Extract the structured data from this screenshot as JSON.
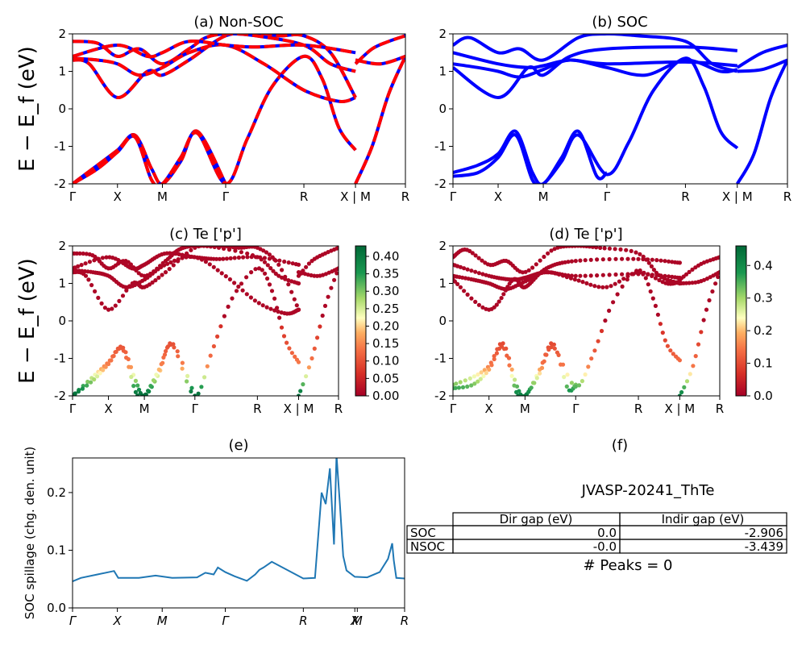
{
  "figure": {
    "id_label": "JVASP-20241_ThTe",
    "peaks_label": "# Peaks = 0"
  },
  "chart_data": [
    {
      "panel": "a",
      "type": "line",
      "title": "(a) Non-SOC",
      "ylabel": "E − E_f (eV)",
      "ylim": [
        -2,
        2
      ],
      "yticks": [
        -2,
        -1,
        0,
        1,
        2
      ],
      "kpath": [
        "Γ",
        "X",
        "M",
        "Γ",
        "R",
        "X | M",
        "R"
      ],
      "kpos": [
        0,
        0.54,
        1.08,
        1.84,
        2.78,
        3.4,
        4.0
      ],
      "series": [
        {
          "color": "#0000ff",
          "x": [
            0,
            0.3,
            0.54,
            0.75,
            0.95,
            1.08,
            1.3,
            1.5,
            1.84
          ],
          "y": [
            -2.0,
            -1.5,
            -1.1,
            -0.7,
            -1.6,
            -2.0,
            -1.4,
            -0.6,
            -2.0
          ]
        },
        {
          "color": "#0000ff",
          "x": [
            0,
            0.3,
            0.54,
            0.75,
            0.95,
            1.08,
            1.3,
            1.5,
            1.84,
            2.1,
            2.4,
            2.78,
            3.0,
            3.2,
            3.4
          ],
          "y": [
            -2.0,
            -1.6,
            -1.15,
            -0.75,
            -1.9,
            -2.0,
            -1.3,
            -0.65,
            -2.0,
            -0.8,
            0.6,
            1.4,
            0.8,
            -0.5,
            -1.1
          ]
        },
        {
          "color": "#0000ff",
          "x": [
            0,
            0.2,
            0.54,
            0.9,
            1.08,
            1.4,
            1.84,
            2.2,
            2.5,
            2.78,
            3.1,
            3.4
          ],
          "y": [
            1.3,
            1.2,
            0.3,
            1.0,
            0.9,
            1.3,
            1.95,
            2.0,
            1.95,
            1.95,
            1.5,
            0.3
          ]
        },
        {
          "color": "#0000ff",
          "x": [
            0,
            0.3,
            0.54,
            0.8,
            1.08,
            1.4,
            1.6,
            1.84,
            2.2,
            2.78,
            3.1,
            3.4
          ],
          "y": [
            1.8,
            1.75,
            1.4,
            1.6,
            1.2,
            1.6,
            1.9,
            2.0,
            1.95,
            1.7,
            1.2,
            1.0
          ]
        },
        {
          "color": "#0000ff",
          "x": [
            0,
            0.3,
            0.54,
            0.8,
            1.08,
            1.4,
            1.84,
            2.3,
            2.78,
            3.2,
            3.4
          ],
          "y": [
            1.35,
            1.3,
            1.2,
            0.9,
            1.1,
            1.5,
            1.7,
            1.2,
            0.5,
            0.2,
            0.3
          ]
        },
        {
          "color": "#0000ff",
          "x": [
            0,
            0.54,
            0.9,
            1.08,
            1.4,
            1.84,
            2.2,
            2.78,
            3.4
          ],
          "y": [
            1.4,
            1.7,
            1.4,
            1.5,
            1.8,
            1.7,
            1.65,
            1.7,
            1.5
          ]
        },
        {
          "color": "#0000ff",
          "x": [
            3.4,
            3.6,
            3.8,
            4.0
          ],
          "y": [
            -2.0,
            -1.0,
            0.4,
            1.4
          ]
        },
        {
          "color": "#0000ff",
          "x": [
            3.4,
            3.6,
            3.8,
            4.0
          ],
          "y": [
            1.2,
            1.6,
            1.8,
            1.95
          ]
        },
        {
          "color": "#0000ff",
          "x": [
            3.4,
            3.7,
            4.0
          ],
          "y": [
            1.3,
            1.2,
            1.4
          ]
        }
      ]
    },
    {
      "panel": "b",
      "type": "line",
      "title": "(b) SOC",
      "ylim": [
        -2,
        2
      ],
      "yticks": [
        -2,
        -1,
        0,
        1,
        2
      ],
      "kpath": [
        "Γ",
        "X",
        "M",
        "Γ",
        "R",
        "X | M",
        "R"
      ],
      "kpos": [
        0,
        0.54,
        1.08,
        1.84,
        2.78,
        3.4,
        4.0
      ],
      "series": [
        {
          "color": "#0000ff",
          "x": [
            0,
            0.3,
            0.54,
            0.75,
            0.95,
            1.08,
            1.3,
            1.5,
            1.72,
            1.84
          ],
          "y": [
            -1.7,
            -1.5,
            -1.2,
            -0.6,
            -1.7,
            -2.0,
            -1.3,
            -0.6,
            -1.8,
            -1.7
          ]
        },
        {
          "color": "#0000ff",
          "x": [
            0,
            0.3,
            0.54,
            0.75,
            0.95,
            1.08,
            1.3,
            1.5,
            1.84,
            2.1,
            2.4,
            2.78,
            3.0,
            3.2,
            3.4
          ],
          "y": [
            -1.8,
            -1.7,
            -1.3,
            -0.7,
            -1.9,
            -2.0,
            -1.4,
            -0.7,
            -1.75,
            -0.9,
            0.5,
            1.35,
            0.6,
            -0.6,
            -1.05
          ]
        },
        {
          "color": "#0000ff",
          "x": [
            0,
            0.54,
            0.9,
            1.08,
            1.4,
            1.84,
            2.78,
            3.4
          ],
          "y": [
            1.1,
            0.3,
            1.1,
            0.9,
            1.4,
            1.6,
            1.65,
            1.55
          ]
        },
        {
          "color": "#0000ff",
          "x": [
            0,
            0.2,
            0.54,
            0.8,
            1.08,
            1.5,
            1.84,
            2.2,
            2.78,
            3.1,
            3.4
          ],
          "y": [
            1.7,
            1.9,
            1.5,
            1.6,
            1.3,
            1.9,
            2.0,
            1.95,
            1.8,
            1.2,
            1.0
          ]
        },
        {
          "color": "#0000ff",
          "x": [
            0,
            0.3,
            0.54,
            0.8,
            1.08,
            1.4,
            1.84,
            2.3,
            2.78,
            3.2,
            3.4
          ],
          "y": [
            1.2,
            1.1,
            1.0,
            0.85,
            1.05,
            1.3,
            1.1,
            0.9,
            1.3,
            1.0,
            1.05
          ]
        },
        {
          "color": "#0000ff",
          "x": [
            0,
            0.54,
            0.9,
            1.08,
            1.4,
            1.84,
            2.78,
            3.4
          ],
          "y": [
            1.5,
            1.2,
            1.1,
            1.15,
            1.3,
            1.2,
            1.25,
            1.15
          ]
        },
        {
          "color": "#0000ff",
          "x": [
            3.4,
            3.6,
            3.8,
            4.0
          ],
          "y": [
            -2.0,
            -1.2,
            0.3,
            1.3
          ]
        },
        {
          "color": "#0000ff",
          "x": [
            3.4,
            3.7,
            4.0
          ],
          "y": [
            1.1,
            1.5,
            1.7
          ]
        },
        {
          "color": "#0000ff",
          "x": [
            3.4,
            3.7,
            4.0
          ],
          "y": [
            1.0,
            1.05,
            1.3
          ]
        }
      ]
    },
    {
      "panel": "c",
      "type": "scatter",
      "title": "(c)  Te ['p']",
      "ylabel": "E − E_f (eV)",
      "ylim": [
        -2,
        2
      ],
      "yticks": [
        -2,
        -1,
        0,
        1,
        2
      ],
      "kpath": [
        "Γ",
        "X",
        "M",
        "Γ",
        "R",
        "X | M",
        "R"
      ],
      "kpos": [
        0,
        0.54,
        1.08,
        1.84,
        2.78,
        3.4,
        4.0
      ],
      "colorbar": {
        "min": 0.0,
        "max": 0.43,
        "ticks": [
          "0.00",
          "0.05",
          "0.10",
          "0.15",
          "0.20",
          "0.25",
          "0.30",
          "0.35",
          "0.40"
        ]
      }
    },
    {
      "panel": "d",
      "type": "scatter",
      "title": "(d) Te ['p']",
      "ylim": [
        -2,
        2
      ],
      "yticks": [
        -2,
        -1,
        0,
        1,
        2
      ],
      "kpath": [
        "Γ",
        "X",
        "M",
        "Γ",
        "R",
        "X | M",
        "R"
      ],
      "kpos": [
        0,
        0.54,
        1.08,
        1.84,
        2.78,
        3.4,
        4.0
      ],
      "colorbar": {
        "min": 0.0,
        "max": 0.46,
        "ticks": [
          "0.0",
          "0.1",
          "0.2",
          "0.3",
          "0.4"
        ]
      }
    },
    {
      "panel": "e",
      "type": "line",
      "title": "(e)",
      "ylabel": "SOC spillage (chg. den. unit)",
      "ylim": [
        0,
        0.26
      ],
      "yticks": [
        0.0,
        0.1,
        0.2
      ],
      "kpath": [
        "Γ",
        "X",
        "M",
        "Γ",
        "R",
        "X",
        "M",
        "R"
      ],
      "kpos": [
        0,
        0.54,
        1.08,
        1.84,
        2.78,
        3.4,
        3.43,
        4.0
      ],
      "series": [
        {
          "color": "#1f77b4",
          "x": [
            0,
            0.1,
            0.3,
            0.5,
            0.55,
            0.7,
            0.8,
            1.0,
            1.2,
            1.5,
            1.6,
            1.7,
            1.75,
            1.84,
            1.95,
            2.1,
            2.2,
            2.25,
            2.3,
            2.4,
            2.78,
            2.92,
            3.0,
            3.05,
            3.1,
            3.15,
            3.18,
            3.22,
            3.26,
            3.3,
            3.4,
            3.55,
            3.7,
            3.8,
            3.85,
            3.87,
            3.9,
            4.0
          ],
          "y": [
            0.046,
            0.052,
            0.058,
            0.064,
            0.052,
            0.052,
            0.052,
            0.056,
            0.052,
            0.053,
            0.061,
            0.058,
            0.07,
            0.062,
            0.055,
            0.047,
            0.058,
            0.066,
            0.07,
            0.08,
            0.051,
            0.052,
            0.2,
            0.18,
            0.242,
            0.11,
            0.265,
            0.18,
            0.09,
            0.065,
            0.054,
            0.053,
            0.062,
            0.085,
            0.112,
            0.082,
            0.052,
            0.051
          ]
        }
      ]
    },
    {
      "panel": "f",
      "type": "table",
      "title": "(f)",
      "columns": [
        "",
        "Dir gap (eV)",
        "Indir gap (eV)"
      ],
      "rows": [
        {
          "label": "SOC",
          "dir": "0.0",
          "indir": "-2.906"
        },
        {
          "label": "NSOC",
          "dir": "-0.0",
          "indir": "-3.439"
        }
      ]
    }
  ]
}
